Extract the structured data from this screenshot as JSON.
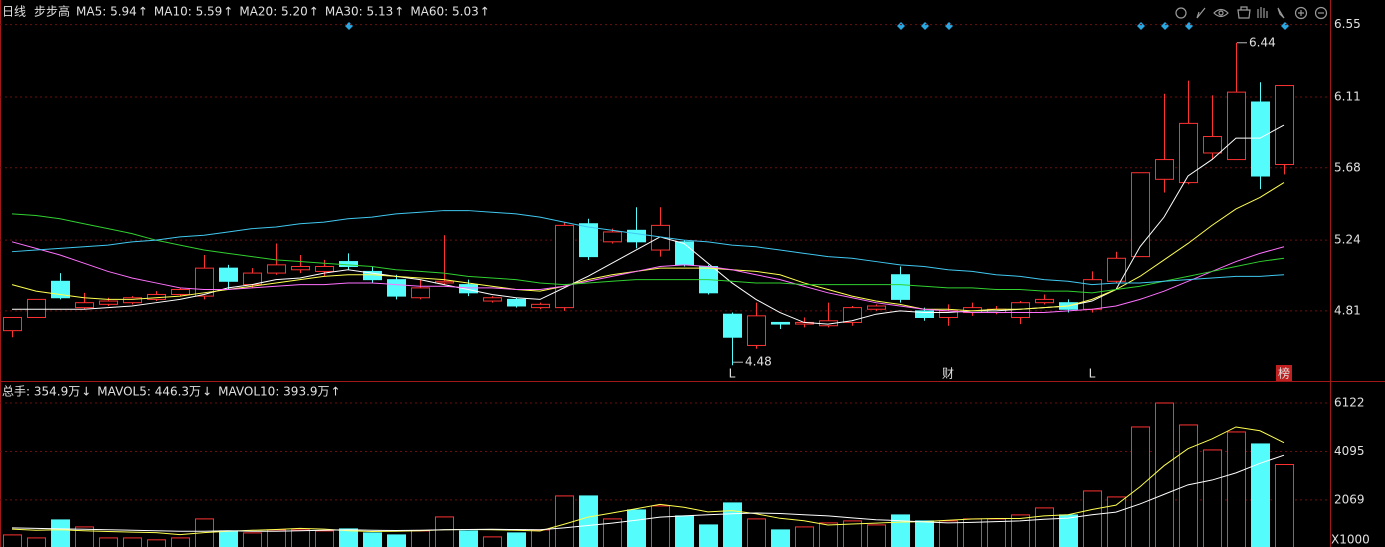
{
  "chart_data": {
    "type": "candlestick",
    "period": "日线",
    "title": "步步高",
    "up_color": "#ff3232",
    "down_color": "#54fcfc",
    "open": [
      4.69,
      4.77,
      4.99,
      4.83,
      4.85,
      4.86,
      4.88,
      4.91,
      4.9,
      5.07,
      4.97,
      5.04,
      5.06,
      5.05,
      5.11,
      5.05,
      5.0,
      4.89,
      4.98,
      4.97,
      4.87,
      4.88,
      4.83,
      4.83,
      5.34,
      5.23,
      5.3,
      5.18,
      5.23,
      5.08,
      4.79,
      4.6,
      4.74,
      4.73,
      4.72,
      4.74,
      4.82,
      5.03,
      4.81,
      4.77,
      4.8,
      4.8,
      4.77,
      4.86,
      4.86,
      4.82,
      4.99,
      5.14,
      5.61,
      5.59,
      5.77,
      5.73,
      6.08,
      5.7
    ],
    "high": [
      4.77,
      4.88,
      5.04,
      4.92,
      4.89,
      4.9,
      4.93,
      4.95,
      5.15,
      5.09,
      5.07,
      5.22,
      5.15,
      5.12,
      5.16,
      5.08,
      5.03,
      5.0,
      5.27,
      5.0,
      4.9,
      4.89,
      4.86,
      5.35,
      5.37,
      5.31,
      5.44,
      5.44,
      5.24,
      5.09,
      4.8,
      4.86,
      4.74,
      4.77,
      4.86,
      4.84,
      4.85,
      5.08,
      4.83,
      4.85,
      4.86,
      4.84,
      4.87,
      4.91,
      4.88,
      5.05,
      5.17,
      5.65,
      6.13,
      6.21,
      6.12,
      6.44,
      6.2,
      6.18
    ],
    "low": [
      4.65,
      4.77,
      4.88,
      4.82,
      4.84,
      4.85,
      4.87,
      4.9,
      4.88,
      4.94,
      4.95,
      5.03,
      5.04,
      5.02,
      5.06,
      4.98,
      4.88,
      4.88,
      4.97,
      4.9,
      4.86,
      4.83,
      4.82,
      4.81,
      5.12,
      5.22,
      5.19,
      5.14,
      5.08,
      4.91,
      4.48,
      4.58,
      4.7,
      4.71,
      4.71,
      4.72,
      4.81,
      4.86,
      4.75,
      4.72,
      4.78,
      4.79,
      4.73,
      4.85,
      4.8,
      4.8,
      4.98,
      5.14,
      5.53,
      5.58,
      5.73,
      5.74,
      5.55,
      5.64
    ],
    "close": [
      4.77,
      4.88,
      4.89,
      4.86,
      4.87,
      4.89,
      4.91,
      4.94,
      5.07,
      4.99,
      5.04,
      5.09,
      5.08,
      5.08,
      5.08,
      5.0,
      4.9,
      4.95,
      4.99,
      4.92,
      4.89,
      4.84,
      4.85,
      5.33,
      5.14,
      5.29,
      5.23,
      5.33,
      5.09,
      4.92,
      4.65,
      4.78,
      4.73,
      4.74,
      4.75,
      4.83,
      4.84,
      4.88,
      4.77,
      4.81,
      4.83,
      4.82,
      4.86,
      4.88,
      4.82,
      5.0,
      5.13,
      5.65,
      5.73,
      5.95,
      5.87,
      6.14,
      5.63,
      6.18
    ],
    "ylim": [
      4.39,
      6.7
    ],
    "yticks": [
      6.55,
      6.11,
      5.68,
      5.24,
      4.81
    ],
    "grid": true,
    "lines": [
      {
        "label": "MA5: 5.94",
        "arrow": "↑",
        "arrow_color": "#ff4040",
        "color": "#ffffff",
        "values": [
          4.82,
          4.82,
          4.82,
          4.82,
          4.83,
          4.84,
          4.86,
          4.88,
          4.91,
          4.95,
          4.97,
          5.0,
          5.01,
          5.04,
          5.06,
          5.04,
          5.02,
          5.0,
          4.97,
          4.94,
          4.91,
          4.89,
          4.88,
          4.95,
          5.02,
          5.1,
          5.18,
          5.26,
          5.22,
          5.1,
          4.98,
          4.88,
          4.8,
          4.74,
          4.73,
          4.75,
          4.79,
          4.81,
          4.8,
          4.8,
          4.81,
          4.81,
          4.82,
          4.83,
          4.84,
          4.87,
          4.94,
          5.2,
          5.38,
          5.63,
          5.73,
          5.86,
          5.86,
          5.94
        ]
      },
      {
        "label": "MA10: 5.59",
        "arrow": "↑",
        "arrow_color": "#ff4040",
        "color": "#ffff50",
        "values": [
          4.97,
          4.93,
          4.91,
          4.89,
          4.88,
          4.88,
          4.89,
          4.9,
          4.92,
          4.94,
          4.96,
          4.98,
          5.0,
          5.02,
          5.03,
          5.03,
          5.02,
          5.01,
          5.0,
          4.98,
          4.96,
          4.94,
          4.93,
          4.96,
          5.0,
          5.03,
          5.05,
          5.07,
          5.07,
          5.07,
          5.06,
          5.05,
          5.03,
          4.98,
          4.94,
          4.9,
          4.87,
          4.85,
          4.82,
          4.82,
          4.81,
          4.82,
          4.82,
          4.83,
          4.84,
          4.88,
          4.94,
          5.02,
          5.12,
          5.22,
          5.33,
          5.43,
          5.5,
          5.59
        ]
      },
      {
        "label": "MA20: 5.20",
        "arrow": "↑",
        "arrow_color": "#ff4040",
        "color": "#ff70ff",
        "values": [
          5.23,
          5.19,
          5.15,
          5.1,
          5.05,
          5.01,
          4.98,
          4.95,
          4.94,
          4.94,
          4.95,
          4.96,
          4.97,
          4.97,
          4.98,
          4.98,
          4.97,
          4.96,
          4.96,
          4.95,
          4.95,
          4.94,
          4.94,
          4.96,
          4.99,
          5.02,
          5.05,
          5.08,
          5.09,
          5.08,
          5.06,
          5.03,
          5.0,
          4.96,
          4.92,
          4.89,
          4.86,
          4.84,
          4.82,
          4.81,
          4.8,
          4.8,
          4.8,
          4.8,
          4.81,
          4.82,
          4.84,
          4.88,
          4.93,
          4.99,
          5.05,
          5.11,
          5.16,
          5.2
        ]
      },
      {
        "label": "MA30: 5.13",
        "arrow": "↑",
        "arrow_color": "#ff4040",
        "color": "#30d030",
        "values": [
          5.4,
          5.39,
          5.37,
          5.34,
          5.31,
          5.28,
          5.24,
          5.21,
          5.18,
          5.16,
          5.14,
          5.12,
          5.11,
          5.1,
          5.09,
          5.08,
          5.06,
          5.05,
          5.04,
          5.02,
          5.01,
          5.0,
          4.98,
          4.97,
          4.98,
          4.99,
          5.0,
          5.0,
          5.0,
          5.0,
          4.99,
          4.98,
          4.98,
          4.97,
          4.97,
          4.97,
          4.97,
          4.97,
          4.96,
          4.95,
          4.95,
          4.94,
          4.94,
          4.93,
          4.93,
          4.92,
          4.94,
          4.96,
          4.99,
          5.02,
          5.05,
          5.08,
          5.11,
          5.13
        ]
      },
      {
        "label": "MA60: 5.03",
        "arrow": "↑",
        "arrow_color": "#ff4040",
        "color": "#40c8f0",
        "values": [
          5.17,
          5.18,
          5.19,
          5.2,
          5.21,
          5.23,
          5.24,
          5.26,
          5.27,
          5.29,
          5.31,
          5.32,
          5.34,
          5.35,
          5.37,
          5.38,
          5.4,
          5.41,
          5.42,
          5.42,
          5.41,
          5.4,
          5.38,
          5.35,
          5.32,
          5.3,
          5.28,
          5.26,
          5.24,
          5.23,
          5.21,
          5.2,
          5.18,
          5.16,
          5.14,
          5.13,
          5.11,
          5.09,
          5.08,
          5.06,
          5.05,
          5.03,
          5.02,
          5.0,
          4.99,
          4.97,
          4.98,
          4.98,
          4.99,
          5.0,
          5.01,
          5.02,
          5.02,
          5.03
        ]
      }
    ],
    "volume": {
      "label": "总手: 354.9万",
      "arrow": "↓",
      "arrow_color": "#54fcfc",
      "color": "#ff5050",
      "values": [
        606,
        480,
        1233,
        940,
        480,
        480,
        400,
        480,
        1275,
        773,
        690,
        815,
        815,
        773,
        857,
        690,
        606,
        773,
        1358,
        773,
        523,
        690,
        815,
        2236,
        2236,
        1275,
        1651,
        1818,
        1400,
        1024,
        1944,
        1275,
        815,
        940,
        1108,
        1191,
        1024,
        1442,
        1191,
        1191,
        1275,
        1275,
        1442,
        1735,
        1442,
        2445,
        2194,
        5120,
        6122,
        5204,
        4159,
        4911,
        4410,
        3549
      ],
      "ylim": [
        100,
        7000
      ],
      "yticks": [
        6122,
        4095,
        2069
      ],
      "unit": "X1000",
      "lines": [
        {
          "label": "MAVOL5: 446.3万",
          "arrow": "↓",
          "arrow_color": "#54fcfc",
          "color": "#ffff50",
          "values": [
            850,
            800,
            820,
            780,
            750,
            720,
            700,
            620,
            700,
            760,
            800,
            830,
            880,
            850,
            780,
            750,
            760,
            780,
            820,
            830,
            820,
            800,
            770,
            1050,
            1350,
            1520,
            1700,
            1880,
            1760,
            1570,
            1620,
            1490,
            1300,
            1200,
            1020,
            1060,
            1100,
            1140,
            1160,
            1220,
            1270,
            1290,
            1290,
            1400,
            1450,
            1670,
            1850,
            2620,
            3500,
            4210,
            4620,
            5120,
            4960,
            4463
          ]
        },
        {
          "label": "MAVOL10: 393.9万",
          "arrow": "↑",
          "arrow_color": "#ff4040",
          "color": "#ffffff",
          "values": [
            900,
            880,
            860,
            840,
            820,
            800,
            780,
            760,
            760,
            780,
            760,
            760,
            780,
            800,
            820,
            800,
            790,
            800,
            820,
            830,
            840,
            830,
            820,
            900,
            1000,
            1100,
            1220,
            1350,
            1400,
            1450,
            1490,
            1520,
            1500,
            1450,
            1400,
            1320,
            1240,
            1200,
            1150,
            1110,
            1130,
            1160,
            1190,
            1260,
            1310,
            1450,
            1560,
            1900,
            2300,
            2700,
            2900,
            3200,
            3600,
            3939
          ]
        }
      ]
    },
    "bottom_flags": [
      null,
      null,
      null,
      null,
      null,
      null,
      null,
      null,
      null,
      null,
      null,
      null,
      null,
      null,
      null,
      null,
      null,
      null,
      null,
      null,
      null,
      null,
      null,
      null,
      null,
      null,
      null,
      null,
      null,
      null,
      "L",
      null,
      null,
      null,
      null,
      null,
      null,
      null,
      null,
      "财",
      null,
      null,
      null,
      null,
      null,
      "L",
      null,
      null,
      null,
      null,
      null,
      null,
      null,
      "榜"
    ]
  }
}
